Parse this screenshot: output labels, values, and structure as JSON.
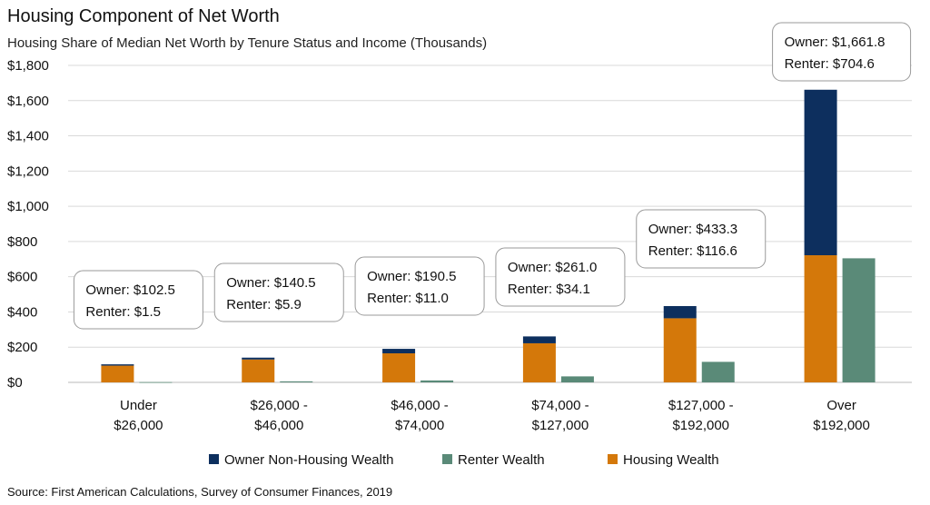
{
  "chart_data": {
    "type": "bar",
    "title": "Housing Component of Net Worth",
    "subtitle": "Housing Share of Median Net Worth by Tenure Status and Income (Thousands)",
    "source": "Source: First American Calculations, Survey of Consumer Finances, 2019",
    "categories": [
      [
        "Under",
        "$26,000"
      ],
      [
        "$26,000 -",
        "$46,000"
      ],
      [
        "$46,000 -",
        "$74,000"
      ],
      [
        "$74,000 -",
        "$127,000"
      ],
      [
        "$127,000 -",
        "$192,000"
      ],
      [
        "Over",
        "$192,000"
      ]
    ],
    "ylim": [
      0,
      1800
    ],
    "yticks": [
      0,
      200,
      400,
      600,
      800,
      1000,
      1200,
      1400,
      1600,
      1800
    ],
    "ytick_labels": [
      "$0",
      "$200",
      "$400",
      "$600",
      "$800",
      "$1,000",
      "$1,200",
      "$1,400",
      "$1,600",
      "$1,800"
    ],
    "grid": true,
    "legend_position": "bottom",
    "series": [
      {
        "name": "Owner Non-Housing Wealth",
        "color": "#0d2f5e",
        "stack": "owner",
        "values": [
          7.5,
          10.5,
          25.5,
          39.0,
          69.3,
          939.8
        ]
      },
      {
        "name": "Renter Wealth",
        "color": "#5a8a78",
        "stack": "renter",
        "values": [
          1.5,
          5.9,
          11.0,
          34.1,
          116.6,
          704.6
        ]
      },
      {
        "name": "Housing Wealth",
        "color": "#d4780a",
        "stack": "owner",
        "values": [
          95,
          130,
          165,
          222,
          364,
          722
        ]
      }
    ],
    "legend_order": [
      0,
      1,
      2
    ],
    "callouts": [
      [
        "Owner: $102.5",
        "Renter: $1.5"
      ],
      [
        "Owner: $140.5",
        "Renter: $5.9"
      ],
      [
        "Owner: $190.5",
        "Renter: $11.0"
      ],
      [
        "Owner: $261.0",
        "Renter: $34.1"
      ],
      [
        "Owner: $433.3",
        "Renter: $116.6"
      ],
      [
        "Owner: $1,661.8",
        "Renter: $704.6"
      ]
    ]
  }
}
